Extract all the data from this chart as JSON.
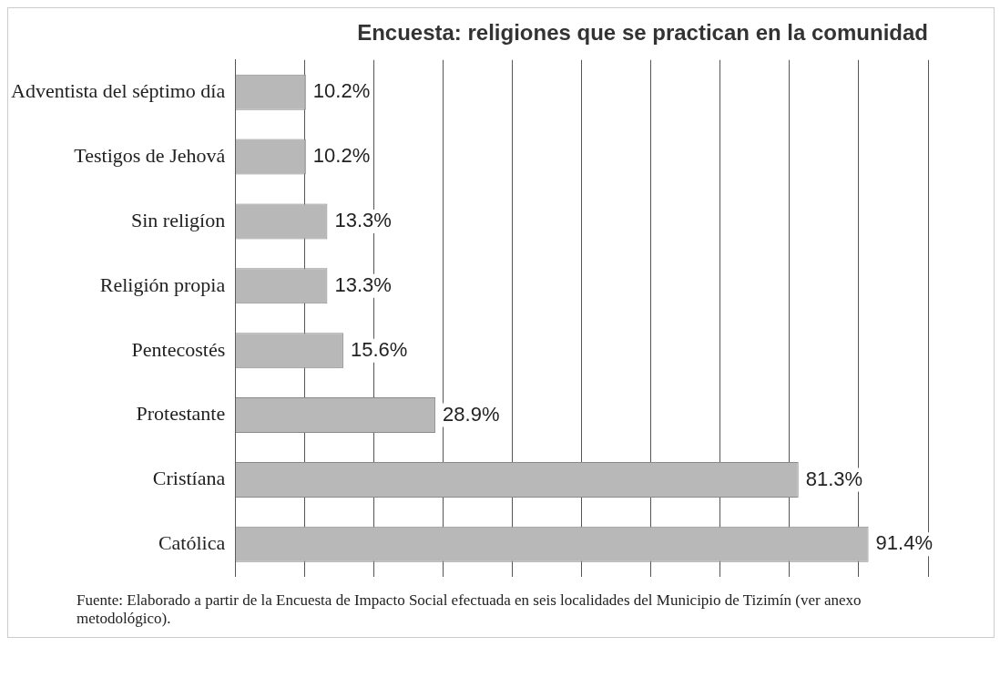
{
  "chart_data": {
    "type": "bar",
    "orientation": "horizontal",
    "title": "Encuesta: religiones que se practican en la comunidad",
    "categories": [
      "Adventista del séptimo día",
      "Testigos de Jehová",
      "Sin religíon",
      "Religión propia",
      "Pentecostés",
      "Protestante",
      "Cristíana",
      "Católica"
    ],
    "values": [
      10.2,
      10.2,
      13.3,
      13.3,
      15.6,
      28.9,
      81.3,
      91.4
    ],
    "value_labels": [
      "10.2%",
      "10.2%",
      "13.3%",
      "13.3%",
      "15.6%",
      "28.9%",
      "81.3%",
      "91.4%"
    ],
    "color": "#b8b8b8",
    "xlim": [
      0,
      100
    ],
    "tick_labels": "y",
    "grid": "x",
    "legend": false,
    "annotations": [
      "Fuente: Elaborado a partir de la Encuesta de Impacto Social  efectuada en seis localidades del Municipio de Tizimín (ver anexo metodológico)."
    ]
  }
}
